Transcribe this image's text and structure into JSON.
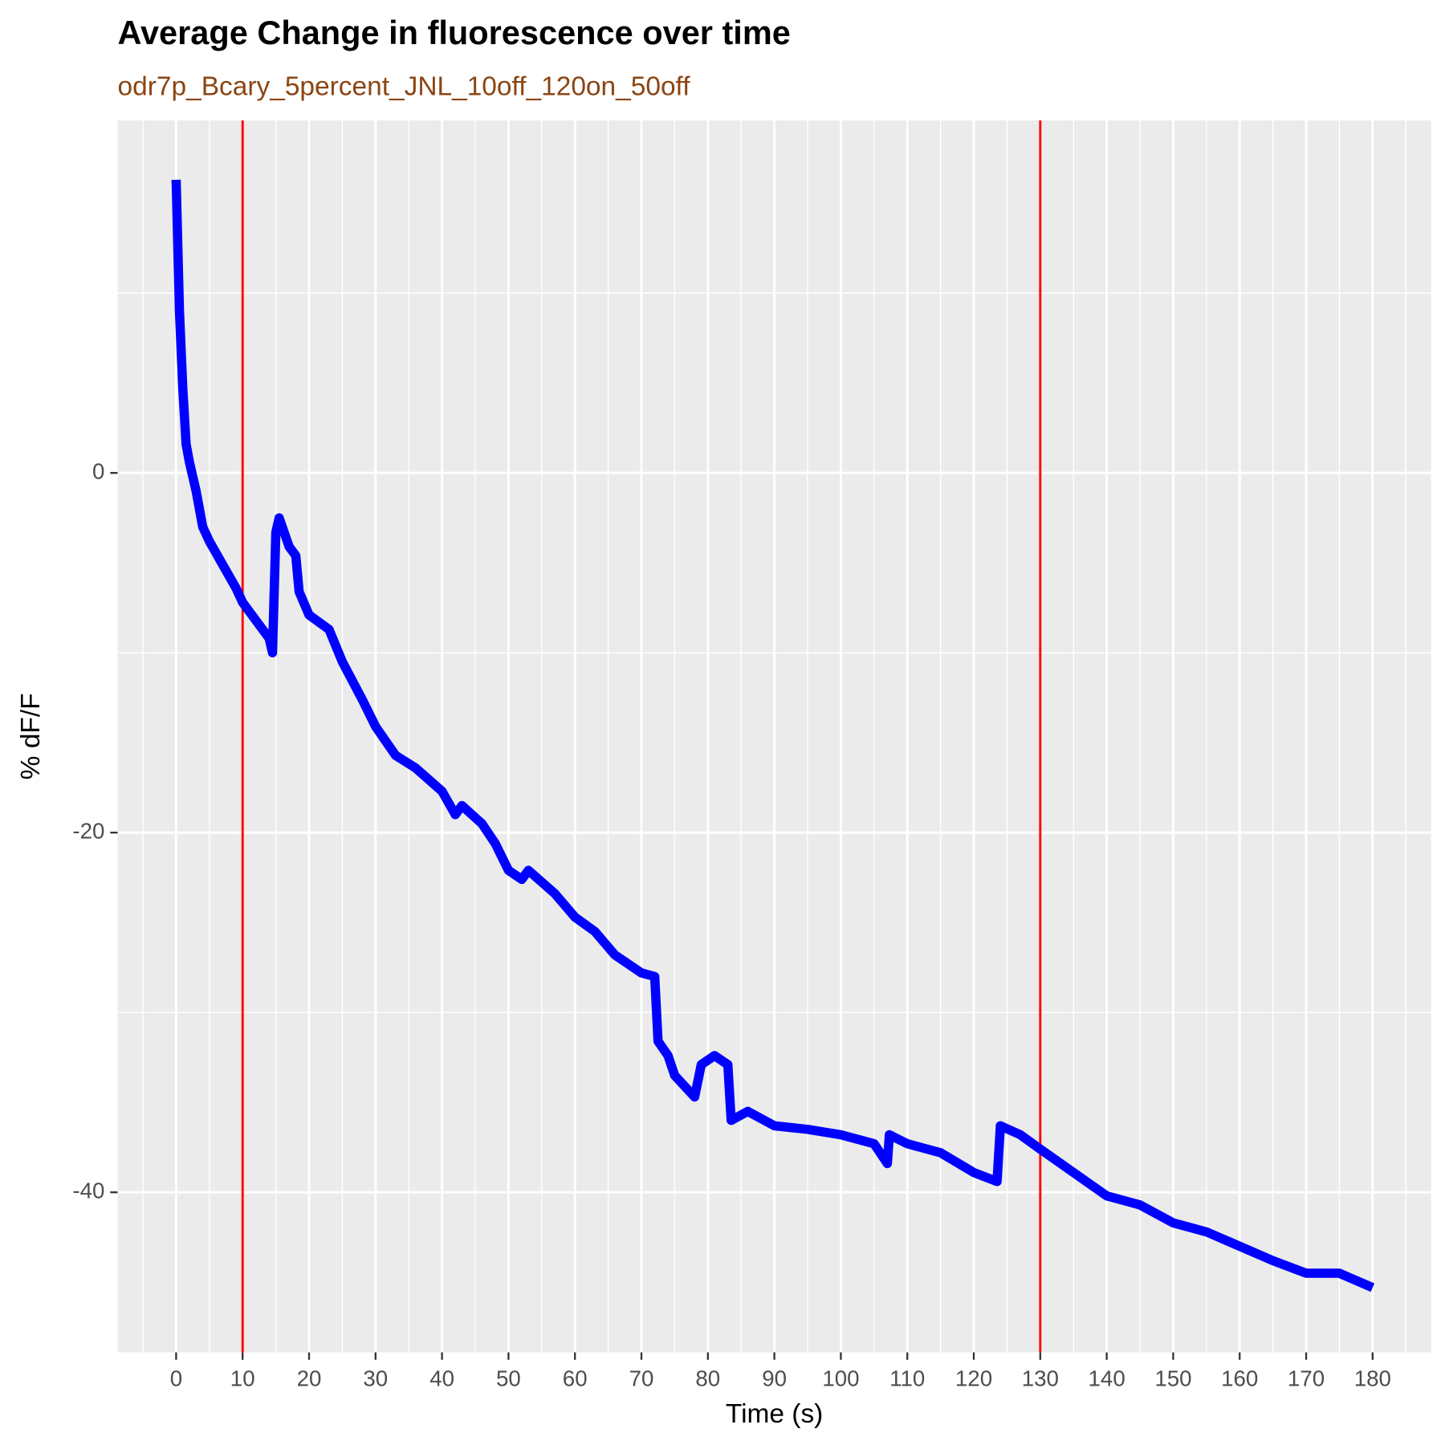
{
  "chart_data": {
    "type": "line",
    "title": "Average Change in fluorescence over time",
    "subtitle": "odr7p_Bcary_5percent_JNL_10off_120on_50off",
    "x_label": "Time (s)",
    "y_label": "% dF/F",
    "x": [
      0,
      0.5,
      1,
      1.5,
      2,
      3,
      4,
      5,
      7,
      9,
      10,
      12,
      14,
      14.5,
      15,
      15.5,
      17,
      18,
      18.5,
      20,
      23,
      25,
      28,
      30,
      33,
      36,
      40,
      42,
      43,
      46,
      48,
      50,
      52,
      53,
      57,
      60,
      63,
      66,
      70,
      72,
      72.5,
      74,
      75,
      78,
      79,
      81,
      83,
      83.5,
      86,
      90,
      95,
      100,
      105,
      107,
      107.3,
      110,
      115,
      120,
      123.5,
      124,
      127,
      130,
      135,
      140,
      145,
      150,
      155,
      160,
      165,
      170,
      175,
      180
    ],
    "series": [
      {
        "name": "dF/F",
        "color": "#0000ff",
        "values": [
          16.3,
          9,
          4.7,
          1.6,
          0.6,
          -1,
          -3,
          -3.8,
          -5.1,
          -6.4,
          -7.2,
          -8.2,
          -9.2,
          -10,
          -3.3,
          -2.5,
          -4.1,
          -4.6,
          -6.6,
          -7.9,
          -8.7,
          -10.5,
          -12.6,
          -14.1,
          -15.7,
          -16.4,
          -17.7,
          -19,
          -18.5,
          -19.5,
          -20.6,
          -22.1,
          -22.6,
          -22.1,
          -23.4,
          -24.7,
          -25.5,
          -26.8,
          -27.8,
          -28,
          -31.6,
          -32.4,
          -33.5,
          -34.7,
          -32.9,
          -32.4,
          -32.9,
          -36,
          -35.5,
          -36.3,
          -36.5,
          -36.8,
          -37.3,
          -38.4,
          -36.8,
          -37.3,
          -37.8,
          -38.9,
          -39.4,
          -36.3,
          -36.8,
          -37.6,
          -38.9,
          -40.2,
          -40.7,
          -41.7,
          -42.2,
          -43,
          -43.8,
          -44.5,
          -44.5,
          -45.3
        ]
      }
    ],
    "vlines": [
      10,
      130
    ],
    "vline_color": "#ff0000",
    "xlim": [
      -8.8,
      188.8
    ],
    "ylim": [
      -48.9,
      19.6
    ],
    "xticks": [
      0,
      10,
      20,
      30,
      40,
      50,
      60,
      70,
      80,
      90,
      100,
      110,
      120,
      130,
      140,
      150,
      160,
      170,
      180
    ],
    "yticks": [
      -40,
      -20,
      0
    ],
    "minor_xticks": [
      -5,
      5,
      15,
      25,
      35,
      45,
      55,
      65,
      75,
      85,
      95,
      105,
      115,
      125,
      135,
      145,
      155,
      165,
      175,
      185
    ],
    "minor_yticks": [
      -30,
      -10,
      10
    ],
    "grid": true
  }
}
